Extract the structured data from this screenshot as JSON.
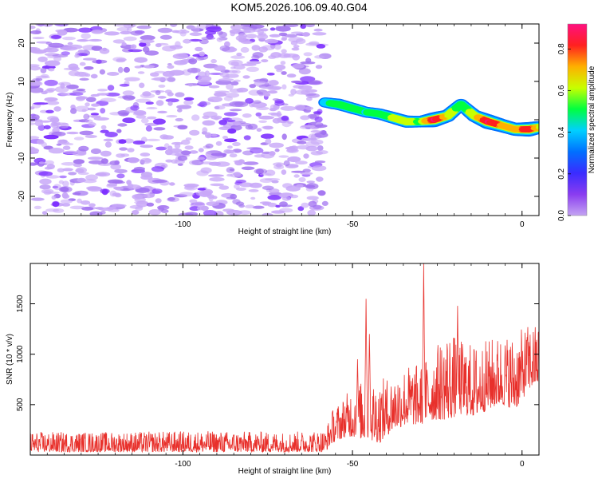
{
  "title": "KOM5.2026.106.09.40.G04",
  "colors": {
    "snr_line": "#e8302b",
    "axis": "#000000",
    "noise_purple": "#7a2bff",
    "noise_light": "#c8a8f8",
    "colorbar": [
      "#c4a4f2",
      "#8a3cf0",
      "#3a2cff",
      "#0070ff",
      "#00d0ff",
      "#00ff40",
      "#c8ff00",
      "#ffb000",
      "#ff2020",
      "#ff1080"
    ]
  },
  "chart_data": [
    {
      "type": "heatmap",
      "name": "spectrogram",
      "xlabel": "Height of straight line (km)",
      "ylabel": "Frequency (Hz)",
      "xlim": [
        -145,
        5
      ],
      "ylim": [
        -25,
        25
      ],
      "xticks": [
        -100,
        -50,
        0
      ],
      "xtick_labels": [
        "-100",
        "-50",
        "0"
      ],
      "yticks": [
        -20,
        -10,
        0,
        10,
        20
      ],
      "ytick_labels": [
        "-20",
        "-10",
        "0",
        "10",
        "20"
      ],
      "colorbar": {
        "label": "Normalized spectral amplitude",
        "range": [
          0,
          0.92
        ],
        "ticks": [
          0,
          0.2,
          0.4,
          0.6,
          0.8
        ],
        "tick_labels": [
          "0.0",
          "0.2",
          "0.4",
          "0.6",
          "0.8"
        ]
      },
      "noise_region": {
        "x_range": [
          -145,
          -58
        ],
        "y_range": [
          -25,
          25
        ]
      },
      "signal_track": {
        "x": [
          -58,
          -54,
          -50,
          -46,
          -42,
          -38,
          -34,
          -30,
          -26,
          -22,
          -18,
          -14,
          -10,
          -6,
          -2,
          2,
          5
        ],
        "freq": [
          4.5,
          4.0,
          3.0,
          2.0,
          1.5,
          0.5,
          -0.5,
          -0.5,
          0.0,
          1.0,
          4.0,
          1.0,
          -0.5,
          -1.5,
          -2.5,
          -2.5,
          -2.0
        ],
        "amplitude": [
          0.3,
          0.45,
          0.4,
          0.35,
          0.4,
          0.5,
          0.55,
          0.45,
          0.9,
          0.6,
          0.4,
          0.55,
          0.9,
          0.7,
          0.65,
          0.85,
          0.6
        ]
      }
    },
    {
      "type": "line",
      "name": "snr",
      "xlabel": "Height of straight line (km)",
      "ylabel": "SNR (10 * v/v)",
      "xlim": [
        -145,
        5
      ],
      "ylim": [
        0,
        1900
      ],
      "xticks": [
        -100,
        -50,
        0
      ],
      "xtick_labels": [
        "-100",
        "-50",
        "0"
      ],
      "yticks": [
        500,
        1000,
        1500
      ],
      "ytick_labels": [
        "500",
        "1000",
        "1500"
      ],
      "envelope": {
        "x": [
          -145,
          -120,
          -95,
          -70,
          -58,
          -56,
          -52,
          -50,
          -46,
          -42,
          -38,
          -34,
          -30,
          -26,
          -22,
          -18,
          -14,
          -10,
          -6,
          -2,
          2,
          5
        ],
        "lower": [
          30,
          30,
          30,
          30,
          30,
          120,
          180,
          180,
          150,
          120,
          250,
          300,
          300,
          350,
          350,
          400,
          380,
          450,
          500,
          450,
          650,
          700
        ],
        "upper": [
          230,
          230,
          240,
          230,
          250,
          450,
          600,
          700,
          750,
          750,
          800,
          900,
          900,
          1050,
          1250,
          1150,
          1100,
          1150,
          1200,
          1200,
          1300,
          1300
        ]
      },
      "spikes": [
        {
          "x": -46,
          "y": 1550
        },
        {
          "x": -29,
          "y": 1900
        },
        {
          "x": -19,
          "y": 1480
        },
        {
          "x": -45,
          "y": 1200
        },
        {
          "x": -48.5,
          "y": 950
        }
      ]
    }
  ]
}
